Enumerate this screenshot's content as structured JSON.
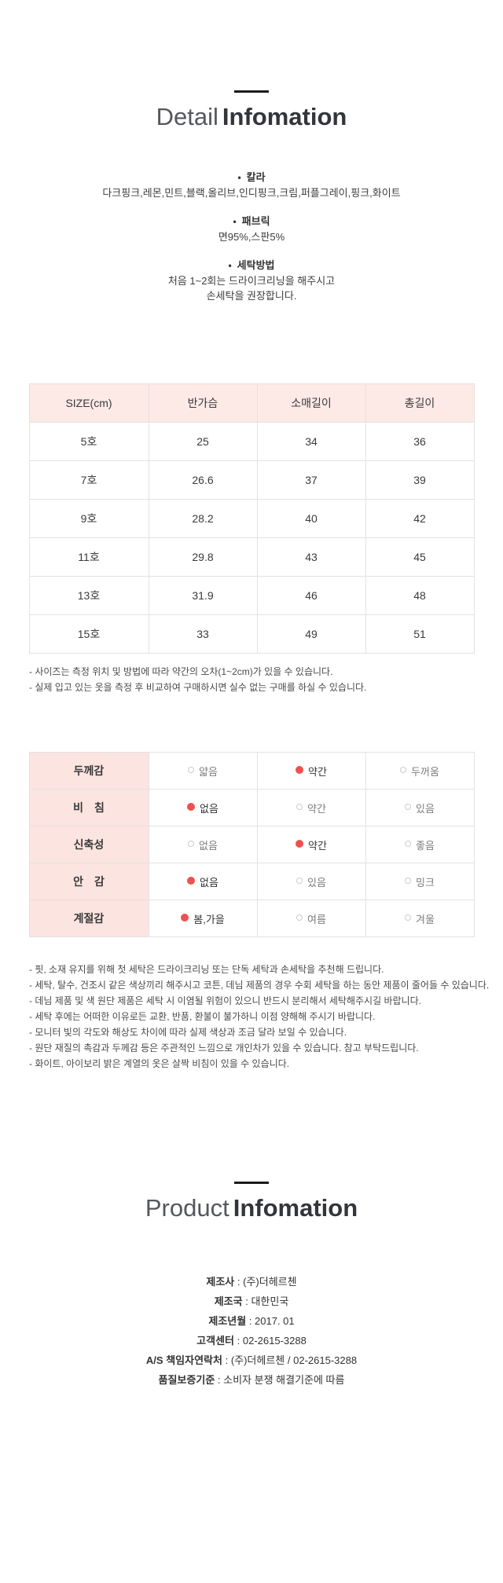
{
  "detail_header": {
    "light": "Detail",
    "bold": "Infomation"
  },
  "product_header": {
    "light": "Product",
    "bold": "Infomation"
  },
  "specs": [
    {
      "label": "칼라",
      "lines": [
        "다크핑크,레몬,민트,블랙,올리브,인디핑크,크림,퍼플그레이,핑크,화이트"
      ]
    },
    {
      "label": "패브릭",
      "lines": [
        "면95%,스판5%"
      ]
    },
    {
      "label": "세탁방법",
      "lines": [
        "처음 1~2회는 드라이크리닝을 해주시고",
        "손세탁을 권장합니다."
      ]
    }
  ],
  "size_table": {
    "headers": [
      "SIZE(cm)",
      "반가슴",
      "소매길이",
      "총길이"
    ],
    "rows": [
      [
        "5호",
        "25",
        "34",
        "36"
      ],
      [
        "7호",
        "26.6",
        "37",
        "39"
      ],
      [
        "9호",
        "28.2",
        "40",
        "42"
      ],
      [
        "11호",
        "29.8",
        "43",
        "45"
      ],
      [
        "13호",
        "31.9",
        "46",
        "48"
      ],
      [
        "15호",
        "33",
        "49",
        "51"
      ]
    ]
  },
  "size_notes": [
    "- 사이즈는 측정 위치 및 방법에 따라 약간의 오차(1~2cm)가 있을 수 있습니다.",
    "- 실제 입고 있는 옷을 측정 후 비교하여 구매하시면 실수 없는 구매를 하실 수 있습니다."
  ],
  "feature_table": {
    "rows": [
      {
        "label": "두께감",
        "options": [
          {
            "text": "얇음",
            "selected": false
          },
          {
            "text": "약간",
            "selected": true
          },
          {
            "text": "두꺼움",
            "selected": false
          }
        ]
      },
      {
        "label": "비　침",
        "options": [
          {
            "text": "없음",
            "selected": true
          },
          {
            "text": "약간",
            "selected": false
          },
          {
            "text": "있음",
            "selected": false
          }
        ]
      },
      {
        "label": "신축성",
        "options": [
          {
            "text": "없음",
            "selected": false
          },
          {
            "text": "약간",
            "selected": true
          },
          {
            "text": "좋음",
            "selected": false
          }
        ]
      },
      {
        "label": "안　감",
        "options": [
          {
            "text": "없음",
            "selected": true
          },
          {
            "text": "있음",
            "selected": false
          },
          {
            "text": "밍크",
            "selected": false
          }
        ]
      },
      {
        "label": "계절감",
        "options": [
          {
            "text": "봄,가을",
            "selected": true
          },
          {
            "text": "여름",
            "selected": false
          },
          {
            "text": "겨울",
            "selected": false
          }
        ]
      }
    ]
  },
  "care_notes": [
    "- 핏, 소재 유지를 위해 첫 세탁은 드라이크리닝 또는 단독 세탁과 손세탁을 추천해 드립니다.",
    "- 세탁, 탈수, 건조시 같은 색상끼리 해주시고 코튼, 데님 제품의 경우 수회 세탁을 하는 동안 제품이 줄어들 수 있습니다.",
    "- 데님 제품 및 색 원단 제품은 세탁 시 이염될 위험이 있으니 반드시 분리해서 세탁해주시길 바랍니다.",
    "- 세탁 후에는 어떠한 이유로든 교환, 반품, 환불이 불가하니 이점 양해해 주시기 바랍니다.",
    "- 모니터 빛의 각도와 해상도 차이에 따라 실제 색상과 조금 달라 보일 수 있습니다.",
    "- 원단 재질의 촉감과 두께감 등은 주관적인 느낌으로 개인차가 있을 수 있습니다. 참고 부탁드립니다.",
    "- 화이트, 아이보리 밝은 계열의 옷은 살짝 비침이 있을 수 있습니다."
  ],
  "product_info_separator": " : ",
  "product_info": [
    {
      "label": "제조사",
      "value": "(주)더헤르첸"
    },
    {
      "label": "제조국",
      "value": "대한민국"
    },
    {
      "label": "제조년월",
      "value": "2017. 01"
    },
    {
      "label": "고객센터",
      "value": "02-2615-3288"
    },
    {
      "label": "A/S 책임자연락처",
      "value": "(주)더헤르첸 / 02-2615-3288"
    },
    {
      "label": "품질보증기준",
      "value": "소비자 분쟁 해결기준에 따름"
    }
  ],
  "colors": {
    "accent_red": "#f0504e",
    "size_header_pink": "#fdeae6",
    "feature_label_pink": "#fce4e0",
    "border_gray": "#e2e2e2"
  }
}
